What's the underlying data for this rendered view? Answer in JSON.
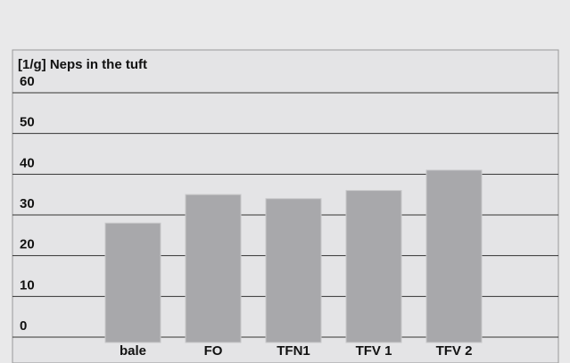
{
  "chart_data": {
    "type": "bar",
    "title": "[1/g] Neps in the tuft",
    "categories": [
      "bale",
      "FO",
      "TFN1",
      "TFV 1",
      "TFV 2"
    ],
    "values": [
      28,
      35,
      34,
      36,
      41
    ],
    "color": "#a8a8ab",
    "ylim": [
      0,
      60
    ],
    "yticks": [
      0,
      10,
      20,
      30,
      40,
      50,
      60
    ],
    "grid": true
  }
}
